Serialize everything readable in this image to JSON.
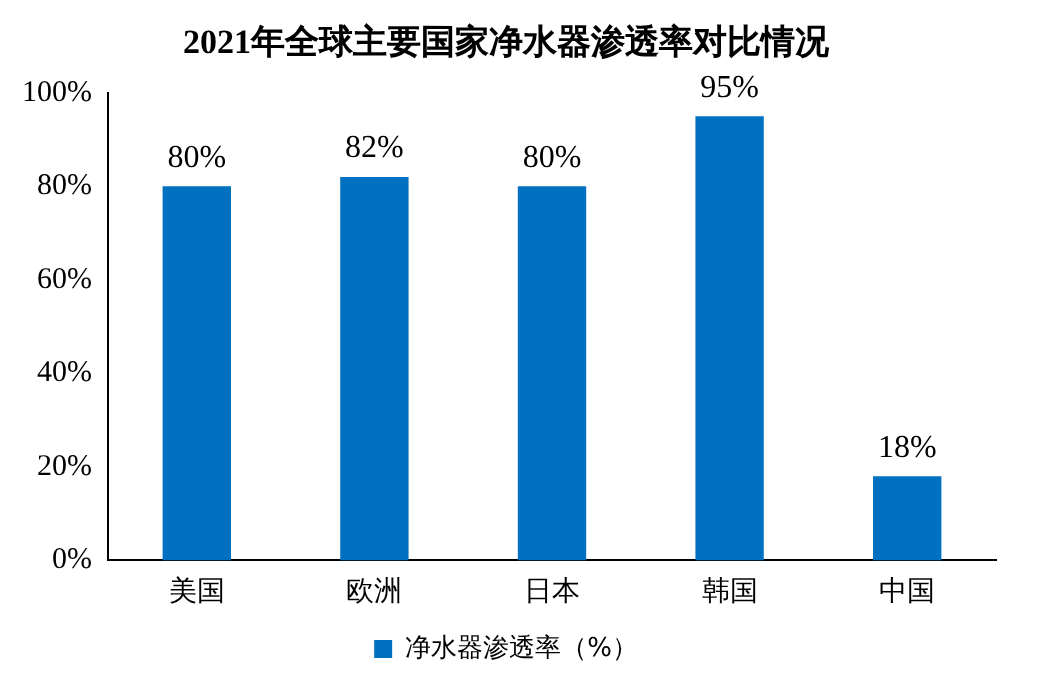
{
  "chart_data": {
    "type": "bar",
    "title": "2021年全球主要国家净水器渗透率对比情况",
    "categories": [
      "美国",
      "欧洲",
      "日本",
      "韩国",
      "中国"
    ],
    "series": [
      {
        "name": "净水器渗透率（%）",
        "color": "#0070c0",
        "values": [
          80,
          82,
          80,
          95,
          18
        ]
      }
    ],
    "value_labels": [
      "80%",
      "82%",
      "80%",
      "95%",
      "18%"
    ],
    "ylim": [
      0,
      100
    ],
    "yticks": [
      {
        "value": 0,
        "label": "0%"
      },
      {
        "value": 20,
        "label": "20%"
      },
      {
        "value": 40,
        "label": "40%"
      },
      {
        "value": 60,
        "label": "60%"
      },
      {
        "value": 80,
        "label": "80%"
      },
      {
        "value": 100,
        "label": "100%"
      }
    ],
    "grid": false,
    "legend": "bottom"
  }
}
